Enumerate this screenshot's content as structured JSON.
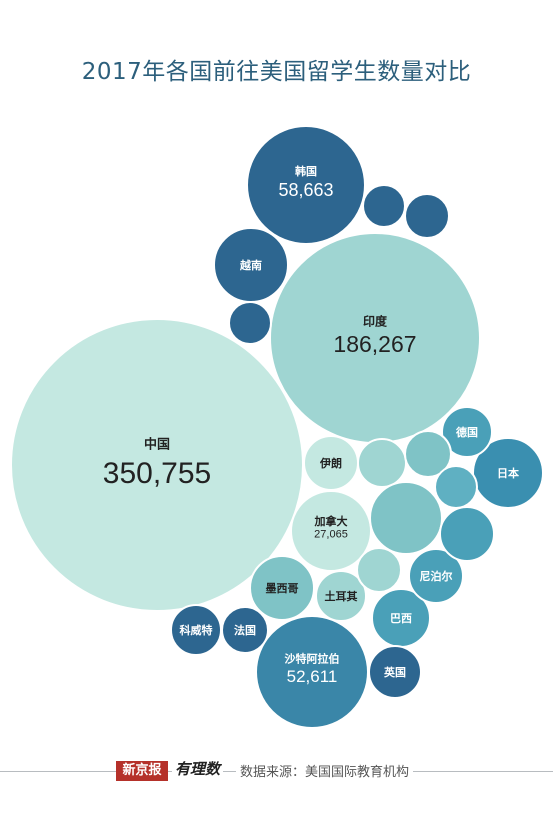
{
  "title": "2017年各国前往美国留学生数量对比",
  "footer": {
    "logo": "新京报",
    "logo_sub": "有理数",
    "source_label": "数据来源：美国国际教育机构"
  },
  "colors": {
    "dark": "#2d6690",
    "mid": "#4aa0b8",
    "light": "#9fd5d2",
    "palest": "#c4e8e1",
    "text_dark_bg": "#ffffff",
    "text_light_bg": "#222222"
  },
  "chart_data": {
    "type": "bubble",
    "title": "2017年各国前往美国留学生数量对比",
    "nodes": [
      {
        "name": "中国",
        "value": 350755,
        "value_label": "350,755",
        "color": "#c4e8e1"
      },
      {
        "name": "印度",
        "value": 186267,
        "value_label": "186,267",
        "color": "#9fd5d2"
      },
      {
        "name": "韩国",
        "value": 58663,
        "value_label": "58,663",
        "color": "#2d6690"
      },
      {
        "name": "沙特阿拉伯",
        "value": 52611,
        "value_label": "52,611",
        "color": "#3a86a8"
      },
      {
        "name": "加拿大",
        "value": 27065,
        "value_label": "27,065",
        "color": "#c4e8e1"
      },
      {
        "name": "越南",
        "value_label": "",
        "color": "#2d6690"
      },
      {
        "name": "日本",
        "value_label": "",
        "color": "#3a8fb0"
      },
      {
        "name": "墨西哥",
        "value_label": "",
        "color": "#7fc3c6"
      },
      {
        "name": "巴西",
        "value_label": "",
        "color": "#4aa0b8"
      },
      {
        "name": "伊朗",
        "value_label": "",
        "color": "#c4e8e1"
      },
      {
        "name": "土耳其",
        "value_label": "",
        "color": "#9fd5d2"
      },
      {
        "name": "德国",
        "value_label": "",
        "color": "#4aa0b8"
      },
      {
        "name": "尼泊尔",
        "value_label": "",
        "color": "#4aa0b8"
      },
      {
        "name": "英国",
        "value_label": "",
        "color": "#2d6690"
      },
      {
        "name": "科威特",
        "value_label": "",
        "color": "#2d6690"
      },
      {
        "name": "法国",
        "value_label": "",
        "color": "#2d6690"
      },
      {
        "name": "",
        "value_label": "",
        "color": "#2d6690"
      },
      {
        "name": "",
        "value_label": "",
        "color": "#2d6690"
      },
      {
        "name": "",
        "value_label": "",
        "color": "#2d6690"
      },
      {
        "name": "",
        "value_label": "",
        "color": "#9fd5d2"
      },
      {
        "name": "",
        "value_label": "",
        "color": "#7fc3c6"
      },
      {
        "name": "",
        "value_label": "",
        "color": "#7fc3c6"
      },
      {
        "name": "",
        "value_label": "",
        "color": "#5fb0c2"
      },
      {
        "name": "",
        "value_label": "",
        "color": "#4aa0b8"
      },
      {
        "name": "",
        "value_label": "",
        "color": "#9fd5d2"
      }
    ]
  }
}
